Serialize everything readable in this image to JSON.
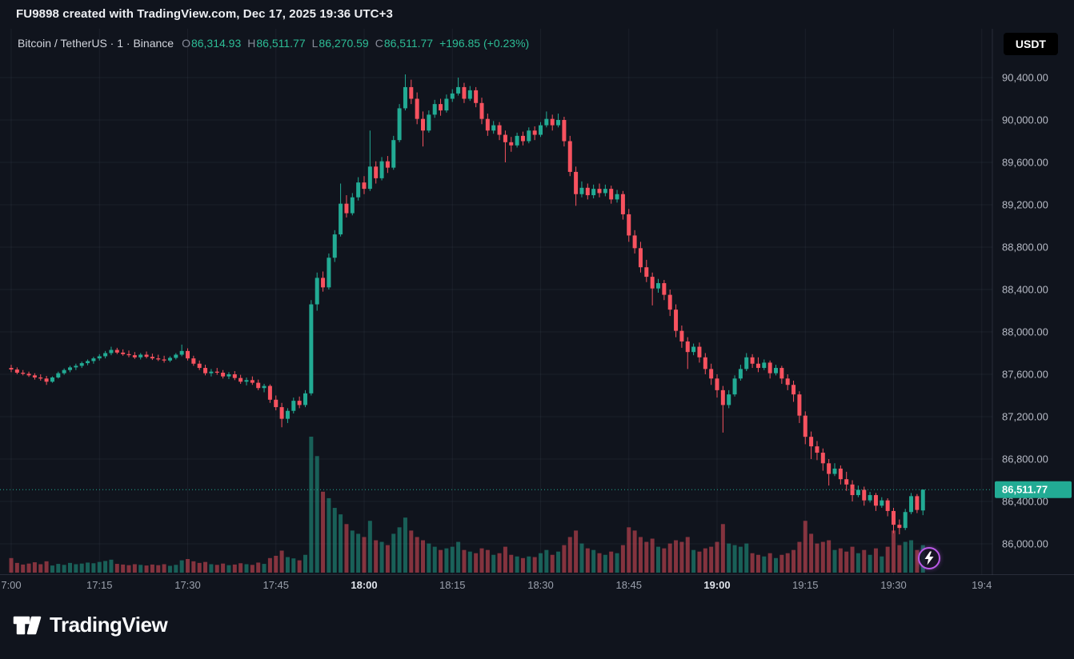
{
  "top_bar": {
    "title": "FU9898 created with TradingView.com, Dec 17, 2025 19:36 UTC+3"
  },
  "legend": {
    "symbol_text": "Bitcoin / TetherUS · 1 · Binance",
    "ohlc": {
      "o_label": "O",
      "o": "86,314.93",
      "h_label": "H",
      "h": "86,511.77",
      "l_label": "L",
      "l": "86,270.59",
      "c_label": "C",
      "c": "86,511.77",
      "change": "+196.85 (+0.23%)"
    }
  },
  "currency_button": {
    "label": "USDT"
  },
  "last_price": {
    "value": 86511.77,
    "label": "86,511.77"
  },
  "logo": {
    "text": "TradingView"
  },
  "flash_button": {
    "icon": "lightning-icon",
    "ring_color": "#bc5ae8"
  },
  "colors": {
    "up": "#22ab94",
    "down": "#f7525f",
    "bg": "#10141d",
    "axis_text": "#b6bac5",
    "grid": "rgba(150,160,187,0.08)"
  },
  "price_axis": {
    "labels": [
      "90,400.00",
      "90,000.00",
      "89,600.00",
      "89,200.00",
      "88,800.00",
      "88,400.00",
      "88,000.00",
      "87,600.00",
      "87,200.00",
      "86,800.00",
      "86,400.00",
      "86,000.00"
    ],
    "values": [
      90400,
      90000,
      89600,
      89200,
      88800,
      88400,
      88000,
      87600,
      87200,
      86800,
      86400,
      86000
    ]
  },
  "time_axis": {
    "ticks": [
      {
        "minute": 0,
        "text": "7:00",
        "major": false
      },
      {
        "minute": 15,
        "text": "17:15",
        "major": false
      },
      {
        "minute": 30,
        "text": "17:30",
        "major": false
      },
      {
        "minute": 45,
        "text": "17:45",
        "major": false
      },
      {
        "minute": 60,
        "text": "18:00",
        "major": true
      },
      {
        "minute": 75,
        "text": "18:15",
        "major": false
      },
      {
        "minute": 90,
        "text": "18:30",
        "major": false
      },
      {
        "minute": 105,
        "text": "18:45",
        "major": false
      },
      {
        "minute": 120,
        "text": "19:00",
        "major": true
      },
      {
        "minute": 135,
        "text": "19:15",
        "major": false
      },
      {
        "minute": 150,
        "text": "19:30",
        "major": false
      },
      {
        "minute": 165,
        "text": "19:4",
        "major": false
      }
    ]
  },
  "chart_data": {
    "type": "candlestick",
    "title": "Bitcoin / TetherUS 1m Binance",
    "interval": "1m",
    "start_time": "17:00",
    "end_time": "19:35",
    "ylim": [
      86000,
      90400
    ],
    "legend_position": "top-left",
    "grid": true,
    "candles_format": [
      "open",
      "high",
      "low",
      "close",
      "volume"
    ],
    "candles": [
      [
        87660,
        87690,
        87620,
        87645,
        45
      ],
      [
        87645,
        87665,
        87600,
        87615,
        30
      ],
      [
        87615,
        87640,
        87590,
        87605,
        25
      ],
      [
        87605,
        87625,
        87575,
        87590,
        28
      ],
      [
        87590,
        87610,
        87550,
        87570,
        32
      ],
      [
        87570,
        87600,
        87540,
        87560,
        26
      ],
      [
        87560,
        87585,
        87500,
        87530,
        35
      ],
      [
        87530,
        87580,
        87520,
        87570,
        22
      ],
      [
        87570,
        87625,
        87560,
        87610,
        27
      ],
      [
        87610,
        87655,
        87595,
        87640,
        24
      ],
      [
        87640,
        87680,
        87620,
        87665,
        30
      ],
      [
        87665,
        87700,
        87640,
        87680,
        26
      ],
      [
        87680,
        87720,
        87660,
        87705,
        28
      ],
      [
        87705,
        87740,
        87685,
        87725,
        31
      ],
      [
        87725,
        87765,
        87700,
        87750,
        29
      ],
      [
        87750,
        87790,
        87730,
        87770,
        33
      ],
      [
        87770,
        87820,
        87750,
        87800,
        36
      ],
      [
        87800,
        87860,
        87780,
        87830,
        40
      ],
      [
        87830,
        87850,
        87790,
        87805,
        27
      ],
      [
        87805,
        87835,
        87775,
        87790,
        25
      ],
      [
        87790,
        87825,
        87760,
        87780,
        23
      ],
      [
        87780,
        87810,
        87745,
        87760,
        26
      ],
      [
        87760,
        87800,
        87740,
        87785,
        24
      ],
      [
        87785,
        87815,
        87750,
        87765,
        22
      ],
      [
        87765,
        87795,
        87735,
        87750,
        25
      ],
      [
        87750,
        87785,
        87725,
        87740,
        23
      ],
      [
        87740,
        87775,
        87710,
        87730,
        26
      ],
      [
        87730,
        87770,
        87715,
        87755,
        21
      ],
      [
        87755,
        87800,
        87740,
        87785,
        24
      ],
      [
        87785,
        87880,
        87770,
        87820,
        38
      ],
      [
        87820,
        87845,
        87730,
        87750,
        42
      ],
      [
        87750,
        87775,
        87680,
        87700,
        35
      ],
      [
        87700,
        87730,
        87640,
        87660,
        30
      ],
      [
        87660,
        87690,
        87590,
        87610,
        33
      ],
      [
        87610,
        87650,
        87580,
        87625,
        26
      ],
      [
        87625,
        87660,
        87595,
        87615,
        24
      ],
      [
        87615,
        87640,
        87560,
        87580,
        28
      ],
      [
        87580,
        87620,
        87555,
        87600,
        23
      ],
      [
        87600,
        87630,
        87545,
        87565,
        25
      ],
      [
        87565,
        87595,
        87510,
        87530,
        29
      ],
      [
        87530,
        87570,
        87495,
        87545,
        26
      ],
      [
        87545,
        87580,
        87500,
        87520,
        24
      ],
      [
        87520,
        87550,
        87450,
        87470,
        31
      ],
      [
        87470,
        87510,
        87430,
        87490,
        27
      ],
      [
        87490,
        87505,
        87330,
        87360,
        45
      ],
      [
        87360,
        87400,
        87260,
        87290,
        52
      ],
      [
        87290,
        87330,
        87100,
        87180,
        68
      ],
      [
        87180,
        87280,
        87140,
        87255,
        48
      ],
      [
        87255,
        87380,
        87230,
        87350,
        44
      ],
      [
        87350,
        87390,
        87280,
        87310,
        38
      ],
      [
        87310,
        87450,
        87290,
        87420,
        55
      ],
      [
        87420,
        88300,
        87400,
        88260,
        420
      ],
      [
        88260,
        88560,
        88200,
        88510,
        360
      ],
      [
        88510,
        88570,
        88380,
        88420,
        250
      ],
      [
        88420,
        88740,
        88400,
        88700,
        230
      ],
      [
        88700,
        88960,
        88660,
        88920,
        200
      ],
      [
        88920,
        89400,
        88900,
        89210,
        180
      ],
      [
        89210,
        89290,
        89080,
        89120,
        150
      ],
      [
        89120,
        89310,
        89100,
        89270,
        130
      ],
      [
        89270,
        89460,
        89240,
        89410,
        120
      ],
      [
        89410,
        89470,
        89300,
        89350,
        110
      ],
      [
        89350,
        89900,
        89330,
        89560,
        160
      ],
      [
        89560,
        89610,
        89400,
        89450,
        100
      ],
      [
        89450,
        89650,
        89430,
        89610,
        95
      ],
      [
        89610,
        89660,
        89500,
        89550,
        85
      ],
      [
        89550,
        89850,
        89530,
        89810,
        120
      ],
      [
        89810,
        90150,
        89790,
        90110,
        140
      ],
      [
        90110,
        90430,
        90090,
        90310,
        170
      ],
      [
        90310,
        90380,
        90150,
        90200,
        130
      ],
      [
        90200,
        90260,
        89960,
        90010,
        110
      ],
      [
        90010,
        90080,
        89750,
        89900,
        100
      ],
      [
        89900,
        90090,
        89880,
        90050,
        90
      ],
      [
        90050,
        90190,
        90020,
        90150,
        80
      ],
      [
        90150,
        90200,
        90040,
        90090,
        70
      ],
      [
        90090,
        90240,
        90070,
        90200,
        75
      ],
      [
        90200,
        90290,
        90170,
        90250,
        80
      ],
      [
        90250,
        90400,
        90230,
        90310,
        95
      ],
      [
        90310,
        90350,
        90160,
        90200,
        70
      ],
      [
        90200,
        90320,
        90180,
        90280,
        65
      ],
      [
        90280,
        90310,
        90120,
        90160,
        60
      ],
      [
        90160,
        90210,
        89960,
        90010,
        75
      ],
      [
        90010,
        90060,
        89850,
        89900,
        70
      ],
      [
        89900,
        89990,
        89870,
        89950,
        55
      ],
      [
        89950,
        89980,
        89810,
        89860,
        60
      ],
      [
        89860,
        89900,
        89600,
        89790,
        80
      ],
      [
        89790,
        89840,
        89700,
        89760,
        55
      ],
      [
        89760,
        89880,
        89740,
        89850,
        50
      ],
      [
        89850,
        89890,
        89760,
        89800,
        45
      ],
      [
        89800,
        89930,
        89780,
        89900,
        50
      ],
      [
        89900,
        89940,
        89810,
        89860,
        48
      ],
      [
        89860,
        89980,
        89840,
        89950,
        60
      ],
      [
        89950,
        90080,
        89930,
        90010,
        70
      ],
      [
        90010,
        90050,
        89900,
        89950,
        55
      ],
      [
        89950,
        90060,
        89930,
        90000,
        65
      ],
      [
        90000,
        90030,
        89750,
        89800,
        85
      ],
      [
        89800,
        89850,
        89470,
        89510,
        110
      ],
      [
        89510,
        89560,
        89190,
        89300,
        130
      ],
      [
        89300,
        89420,
        89270,
        89360,
        90
      ],
      [
        89360,
        89400,
        89250,
        89290,
        75
      ],
      [
        89290,
        89390,
        89260,
        89350,
        70
      ],
      [
        89350,
        89400,
        89270,
        89310,
        60
      ],
      [
        89310,
        89390,
        89280,
        89350,
        55
      ],
      [
        89350,
        89380,
        89210,
        89250,
        65
      ],
      [
        89250,
        89340,
        89220,
        89300,
        60
      ],
      [
        89300,
        89330,
        89060,
        89110,
        85
      ],
      [
        89110,
        89160,
        88850,
        88910,
        140
      ],
      [
        88910,
        88960,
        88740,
        88790,
        130
      ],
      [
        88790,
        88850,
        88560,
        88610,
        110
      ],
      [
        88610,
        88680,
        88470,
        88520,
        95
      ],
      [
        88520,
        88560,
        88250,
        88410,
        105
      ],
      [
        88410,
        88500,
        88370,
        88460,
        80
      ],
      [
        88460,
        88490,
        88300,
        88350,
        75
      ],
      [
        88350,
        88400,
        88150,
        88210,
        90
      ],
      [
        88210,
        88260,
        87950,
        88010,
        100
      ],
      [
        88010,
        88060,
        87850,
        87910,
        95
      ],
      [
        87910,
        87950,
        87650,
        87810,
        110
      ],
      [
        87810,
        87890,
        87780,
        87860,
        70
      ],
      [
        87860,
        87900,
        87710,
        87760,
        65
      ],
      [
        87760,
        87800,
        87600,
        87650,
        75
      ],
      [
        87650,
        87700,
        87500,
        87560,
        80
      ],
      [
        87560,
        87600,
        87380,
        87450,
        95
      ],
      [
        87450,
        87490,
        87050,
        87310,
        150
      ],
      [
        87310,
        87450,
        87280,
        87410,
        90
      ],
      [
        87410,
        87590,
        87390,
        87560,
        85
      ],
      [
        87560,
        87690,
        87540,
        87650,
        80
      ],
      [
        87650,
        87800,
        87630,
        87760,
        90
      ],
      [
        87760,
        87790,
        87660,
        87700,
        60
      ],
      [
        87700,
        87760,
        87620,
        87660,
        55
      ],
      [
        87660,
        87740,
        87640,
        87710,
        50
      ],
      [
        87710,
        87730,
        87560,
        87610,
        60
      ],
      [
        87610,
        87690,
        87590,
        87660,
        45
      ],
      [
        87660,
        87680,
        87510,
        87560,
        55
      ],
      [
        87560,
        87600,
        87450,
        87500,
        60
      ],
      [
        87500,
        87540,
        87340,
        87410,
        70
      ],
      [
        87410,
        87440,
        87140,
        87210,
        95
      ],
      [
        87210,
        87250,
        86940,
        87010,
        160
      ],
      [
        87010,
        87060,
        86800,
        86920,
        120
      ],
      [
        86920,
        86970,
        86790,
        86860,
        90
      ],
      [
        86860,
        86900,
        86690,
        86760,
        95
      ],
      [
        86760,
        86800,
        86550,
        86660,
        100
      ],
      [
        86660,
        86760,
        86640,
        86710,
        70
      ],
      [
        86710,
        86740,
        86560,
        86610,
        75
      ],
      [
        86610,
        86680,
        86500,
        86560,
        65
      ],
      [
        86560,
        86600,
        86400,
        86460,
        80
      ],
      [
        86460,
        86550,
        86440,
        86510,
        60
      ],
      [
        86510,
        86540,
        86360,
        86410,
        70
      ],
      [
        86410,
        86490,
        86390,
        86460,
        55
      ],
      [
        86460,
        86480,
        86310,
        86360,
        75
      ],
      [
        86360,
        86440,
        86340,
        86410,
        50
      ],
      [
        86410,
        86430,
        86260,
        86310,
        80
      ],
      [
        86310,
        86340,
        86100,
        86180,
        130
      ],
      [
        86180,
        86230,
        86090,
        86150,
        85
      ],
      [
        86150,
        86330,
        86130,
        86300,
        95
      ],
      [
        86300,
        86480,
        86280,
        86450,
        100
      ],
      [
        86450,
        86470,
        86290,
        86320,
        70
      ],
      [
        86314.93,
        86511.77,
        86270.59,
        86511.77,
        85
      ]
    ]
  }
}
